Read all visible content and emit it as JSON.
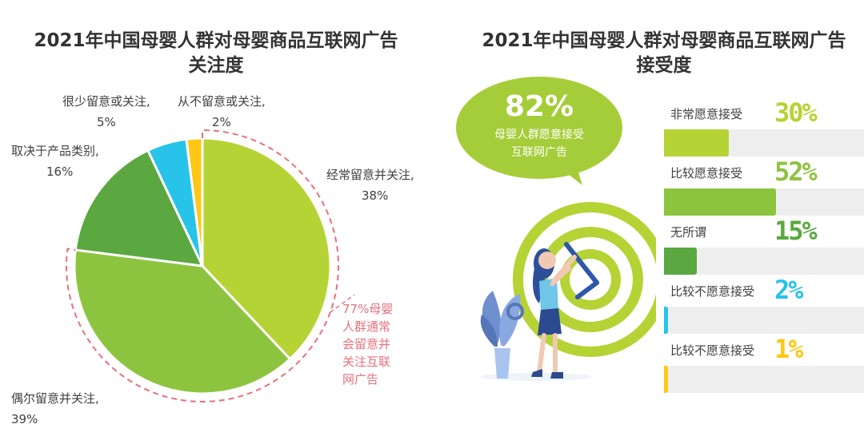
{
  "left": {
    "title_line1": "2021年中国母婴人群对母婴商品互联网广告",
    "title_line2": "关注度",
    "callout": "77%母婴人群通常会留意并关注互联网广告"
  },
  "right": {
    "title_line1": "2021年中国母婴人群对母婴商品互联网广告",
    "title_line2": "接受度",
    "bubble_value": "82%",
    "bubble_caption": "母婴人群愿意接受互联网广告"
  },
  "chart_data": [
    {
      "type": "pie",
      "title": "2021年中国母婴人群对母婴商品互联网广告关注度",
      "slices": [
        {
          "label": "经常留意并关注,",
          "value": 38,
          "display": "38%",
          "color": "#b5d334"
        },
        {
          "label": "偶尔留意并关注,",
          "value": 39,
          "display": "39%",
          "color": "#8dc43f"
        },
        {
          "label": "取决于产品类别,",
          "value": 16,
          "display": "16%",
          "color": "#5aa83f"
        },
        {
          "label": "很少留意或关注,",
          "value": 5,
          "display": "5%",
          "color": "#28c3e8"
        },
        {
          "label": "从不留意或关注,",
          "value": 2,
          "display": "2%",
          "color": "#ffc715"
        }
      ],
      "annotation": "77%母婴人群通常会留意并关注互联网广告"
    },
    {
      "type": "bar",
      "title": "2021年中国母婴人群对母婴商品互联网广告接受度",
      "orientation": "horizontal",
      "categories": [
        "非常愿意接受",
        "比较愿意接受",
        "无所谓",
        "比较不愿意接受",
        "比较不愿意接受"
      ],
      "values": [
        30,
        52,
        15,
        2,
        1
      ],
      "labels": [
        "30%",
        "52%",
        "15%",
        "2%",
        "1%"
      ],
      "colors": [
        "#b5d334",
        "#8dc43f",
        "#5aa83f",
        "#28c3e8",
        "#ffc715"
      ],
      "xlim": [
        0,
        100
      ]
    }
  ]
}
